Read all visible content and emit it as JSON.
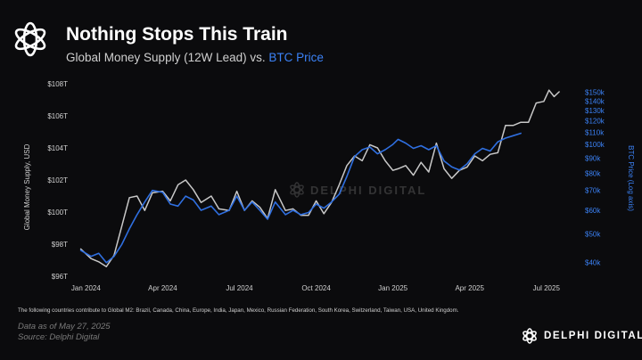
{
  "header": {
    "title": "Nothing Stops This Train",
    "subtitle_prefix": "Global Money Supply (12W Lead) vs.",
    "subtitle_accent": "BTC Price"
  },
  "watermark": "DELPHI DIGITAL",
  "footnote": "The following countries contribute to Global M2: Brazil, Canada, China, Europe, India, Japan, Mexico, Russian Federation, South Korea, Switzerland, Taiwan, USA, United Kingdom.",
  "meta": {
    "data_as_of": "Data as of May 27, 2025",
    "source": "Source: Delphi Digital"
  },
  "brand": {
    "name": "DELPHI DIGITAL"
  },
  "colors": {
    "background": "#0b0b0d",
    "m2_line": "#c8c8c8",
    "btc_line": "#2f6fe0",
    "accent": "#3b82f6",
    "axis_text": "#d0d0d0"
  },
  "chart_data": {
    "type": "line",
    "title": "Nothing Stops This Train",
    "subtitle": "Global Money Supply (12W Lead) vs. BTC Price",
    "x_ticks": [
      "Jan 2024",
      "Apr 2024",
      "Jul 2024",
      "Oct 2024",
      "Jan 2025",
      "Apr 2025",
      "Jul 2025"
    ],
    "x_tick_months": [
      0,
      3,
      6,
      9,
      12,
      15,
      18
    ],
    "x_range_months": [
      -0.5,
      18.6
    ],
    "left_axis": {
      "label": "Global Money Supply, USD",
      "unit": "trillion USD",
      "ticks": [
        96,
        98,
        100,
        102,
        104,
        106,
        108
      ],
      "tick_labels": [
        "$96T",
        "$98T",
        "$100T",
        "$102T",
        "$104T",
        "$106T",
        "$108T"
      ],
      "range": [
        96,
        108
      ]
    },
    "right_axis": {
      "label": "BTC Price (Log axis)",
      "scale": "log",
      "unit": "thousand USD",
      "ticks": [
        40,
        50,
        60,
        70,
        80,
        90,
        100,
        110,
        120,
        130,
        140,
        150
      ],
      "tick_labels": [
        "$40k",
        "$50k",
        "$60k",
        "$70k",
        "$80k",
        "$90k",
        "$100k",
        "$110k",
        "$120k",
        "$130k",
        "$140k",
        "$150k"
      ],
      "range": [
        36,
        160
      ]
    },
    "series": [
      {
        "name": "Global M2 (12W Lead)",
        "axis": "left",
        "x_months": [
          -0.2,
          0.2,
          0.5,
          0.8,
          1.1,
          1.4,
          1.7,
          2.0,
          2.3,
          2.6,
          3.0,
          3.3,
          3.6,
          3.9,
          4.2,
          4.5,
          4.9,
          5.2,
          5.6,
          5.9,
          6.2,
          6.5,
          6.8,
          7.1,
          7.4,
          7.8,
          8.1,
          8.4,
          8.7,
          9.0,
          9.3,
          9.6,
          9.9,
          10.2,
          10.5,
          10.8,
          11.1,
          11.4,
          11.7,
          12.0,
          12.2,
          12.5,
          12.8,
          13.1,
          13.4,
          13.7,
          14.0,
          14.3,
          14.6,
          14.9,
          15.2,
          15.5,
          15.8,
          16.1,
          16.4,
          16.7,
          17.0,
          17.3,
          17.6,
          17.9,
          18.1,
          18.3,
          18.5
        ],
        "values": [
          97.7,
          97.1,
          96.9,
          96.6,
          97.3,
          99.1,
          100.9,
          101.0,
          100.1,
          101.2,
          101.3,
          100.7,
          101.7,
          102.0,
          101.4,
          100.6,
          101.0,
          100.2,
          100.1,
          101.3,
          100.1,
          100.7,
          100.3,
          99.6,
          101.4,
          100.1,
          100.2,
          99.8,
          99.8,
          100.7,
          99.9,
          100.6,
          101.7,
          102.9,
          103.5,
          103.2,
          104.2,
          104.0,
          103.2,
          102.6,
          102.7,
          102.9,
          102.3,
          103.1,
          102.5,
          104.3,
          102.7,
          102.1,
          102.6,
          102.8,
          103.5,
          103.2,
          103.6,
          103.7,
          105.4,
          105.4,
          105.6,
          105.6,
          106.8,
          106.9,
          107.6,
          107.2,
          107.5
        ]
      },
      {
        "name": "BTC Price",
        "axis": "right",
        "x_months": [
          -0.2,
          0.2,
          0.5,
          0.8,
          1.1,
          1.4,
          1.7,
          2.0,
          2.3,
          2.6,
          3.0,
          3.3,
          3.6,
          3.9,
          4.2,
          4.5,
          4.9,
          5.2,
          5.6,
          5.9,
          6.2,
          6.5,
          6.8,
          7.1,
          7.4,
          7.8,
          8.1,
          8.4,
          8.7,
          9.0,
          9.3,
          9.6,
          9.9,
          10.2,
          10.5,
          10.8,
          11.1,
          11.4,
          11.7,
          12.0,
          12.2,
          12.5,
          12.8,
          13.1,
          13.4,
          13.7,
          14.0,
          14.3,
          14.6,
          14.9,
          15.2,
          15.5,
          15.8,
          16.1,
          16.4,
          16.7,
          17.0
        ],
        "values": [
          44,
          42,
          43,
          40,
          42,
          46,
          52,
          58,
          64,
          70,
          69,
          63,
          62,
          67,
          65,
          60,
          62,
          58,
          60,
          67,
          60,
          64,
          60,
          56,
          64,
          58,
          60,
          58,
          59,
          63,
          61,
          64,
          68,
          78,
          91,
          96,
          98,
          93,
          96,
          100,
          104,
          101,
          97,
          99,
          96,
          99,
          88,
          84,
          82,
          86,
          93,
          97,
          95,
          102,
          105,
          107,
          109
        ]
      }
    ]
  }
}
